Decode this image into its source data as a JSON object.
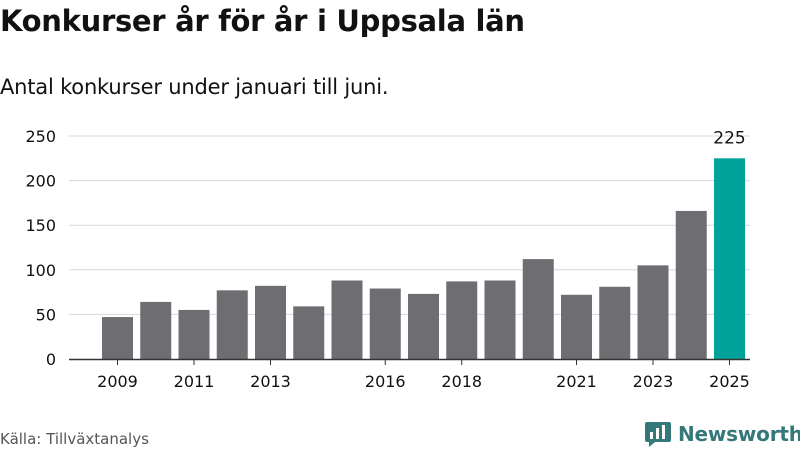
{
  "title": "Konkurser år för år i Uppsala län",
  "subtitle": "Antal konkurser under januari till juni.",
  "source": "Källa: Tillväxtanalys",
  "brand": {
    "name": "Newsworthy",
    "color": "#35787A"
  },
  "colors": {
    "bar": "#6E6D72",
    "highlight": "#00A39A",
    "grid": "#D7D7D7",
    "text": "#111111"
  },
  "chart_data": {
    "type": "bar",
    "categories": [
      "2009",
      "2010",
      "2011",
      "2012",
      "2013",
      "2014",
      "2015",
      "2016",
      "2017",
      "2018",
      "2019",
      "2020",
      "2021",
      "2022",
      "2023",
      "2024",
      "2025"
    ],
    "values": [
      47,
      64,
      55,
      77,
      82,
      59,
      88,
      79,
      73,
      87,
      88,
      112,
      72,
      81,
      105,
      166,
      225
    ],
    "highlight_index": 16,
    "highlight_label": "225",
    "x_tick_labels": [
      "2009",
      "2011",
      "2013",
      "2016",
      "2018",
      "2021",
      "2023",
      "2025"
    ],
    "y_ticks": [
      0,
      50,
      100,
      150,
      200,
      250
    ],
    "ylim": [
      0,
      250
    ],
    "grid": true
  }
}
